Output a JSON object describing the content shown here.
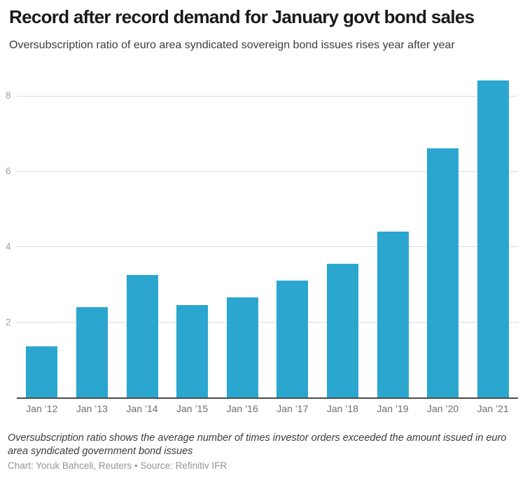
{
  "chart_data": {
    "type": "bar",
    "title": "Record after record demand for January govt bond sales",
    "subtitle": "Oversubscription ratio of euro area syndicated sovereign bond issues rises year after year",
    "categories": [
      "Jan ’12",
      "Jan ’13",
      "Jan ’14",
      "Jan ’15",
      "Jan ’16",
      "Jan ’17",
      "Jan ’18",
      "Jan ’19",
      "Jan ’20",
      "Jan ’21"
    ],
    "values": [
      1.35,
      2.4,
      3.25,
      2.45,
      2.65,
      3.1,
      3.55,
      4.4,
      6.6,
      8.4
    ],
    "xlabel": "",
    "ylabel": "",
    "ylim": [
      0,
      8.7
    ],
    "yticks": [
      2,
      4,
      6,
      8
    ],
    "grid": "horizontal",
    "legend": "none"
  },
  "footer": {
    "note": "Oversubscription ratio shows the average number of times investor orders exceeded the amount issued in euro area syndicated government bond issues",
    "credit": "Chart: Yoruk Bahceli, Reuters • Source: Refinitiv IFR"
  },
  "colors": {
    "bar": "#2aa6cf",
    "gridline": "#dcdcdc",
    "axis_line": "#4b4b4b",
    "y_tick_label": "#9e9e9e",
    "x_tick_label": "#6e6e6e",
    "title": "#1a1a1a",
    "subtitle": "#3d3d3d",
    "note": "#3b3b3b",
    "credit": "#949494"
  }
}
